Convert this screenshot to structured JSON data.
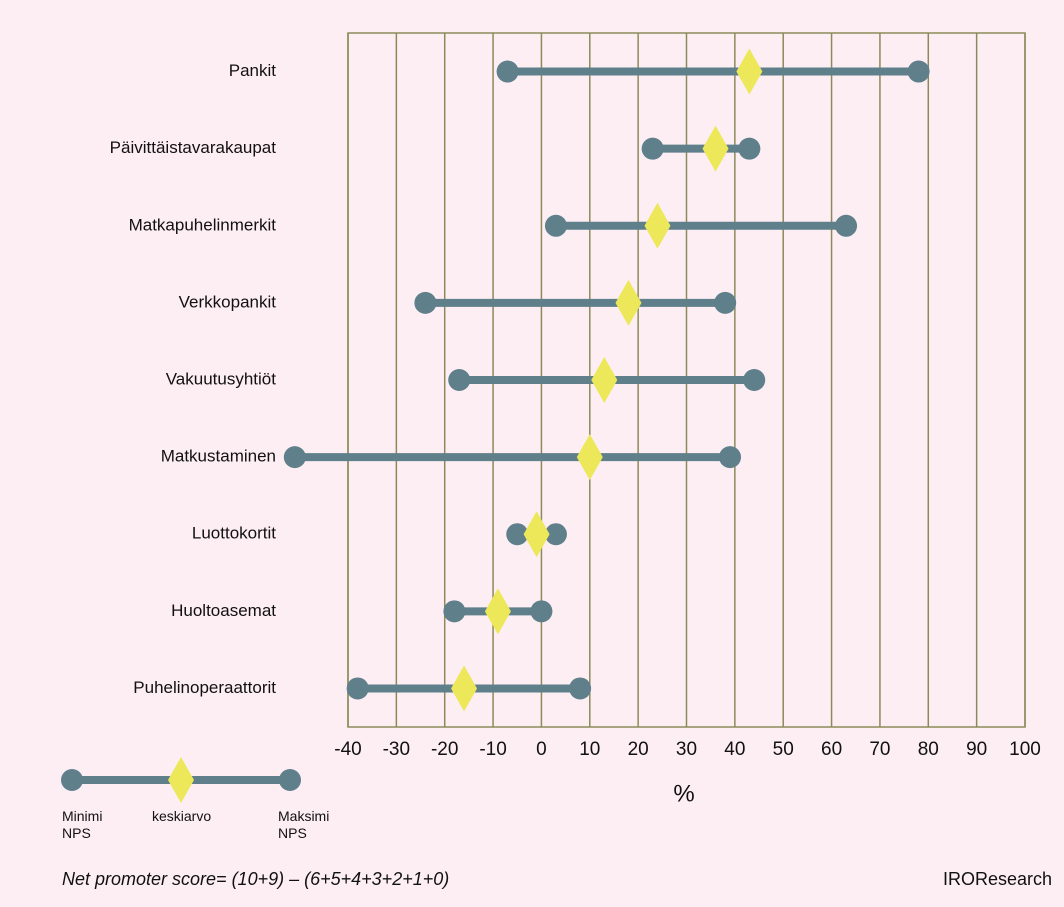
{
  "chart_data": {
    "type": "dumbbell",
    "categories": [
      "Pankit",
      "Päivittäistavarakaupat",
      "Matkapuhelinmerkit",
      "Verkkopankit",
      "Vakuutusyhtiöt",
      "Matkustaminen",
      "Luottokortit",
      "Huoltoasemat",
      "Puhelinoperaattorit"
    ],
    "series": [
      {
        "name": "Minimi NPS",
        "color": "#5f7f8b",
        "values": [
          -7,
          23,
          3,
          -24,
          -17,
          -51,
          -5,
          -18,
          -38
        ]
      },
      {
        "name": "keskiarvo",
        "color": "#ece85a",
        "values": [
          43,
          36,
          24,
          18,
          13,
          10,
          -1,
          -9,
          -16
        ]
      },
      {
        "name": "Maksimi NPS",
        "color": "#5f7f8b",
        "values": [
          78,
          43,
          63,
          38,
          44,
          39,
          3,
          0,
          8
        ]
      }
    ],
    "xlabel": "%",
    "xlim": [
      -40,
      100
    ],
    "xticks": [
      -40,
      -30,
      -20,
      -10,
      0,
      10,
      20,
      30,
      40,
      50,
      60,
      70,
      80,
      90,
      100
    ],
    "grid": true,
    "footnote": "Net promoter score= (10+9) – (6+5+4+3+2+1+0)",
    "source": "IROResearch"
  }
}
